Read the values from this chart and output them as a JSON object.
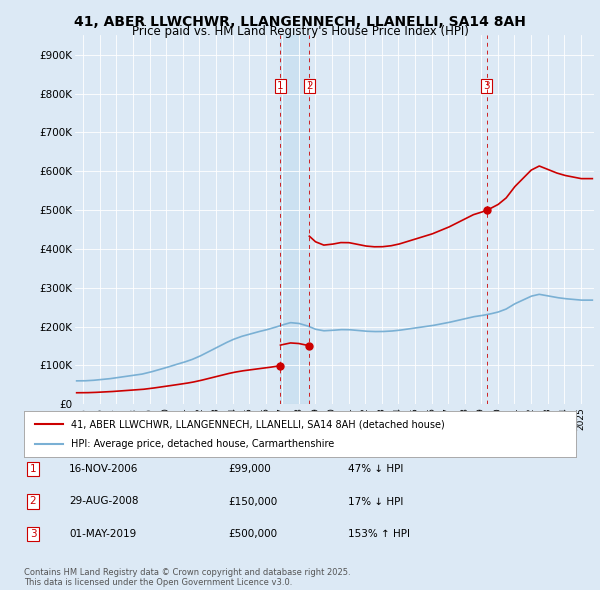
{
  "title": "41, ABER LLWCHWR, LLANGENNECH, LLANELLI, SA14 8AH",
  "subtitle": "Price paid vs. HM Land Registry's House Price Index (HPI)",
  "background_color": "#dce9f5",
  "plot_bg_color": "#dce9f5",
  "legend_label_red": "41, ABER LLWCHWR, LLANGENNECH, LLANELLI, SA14 8AH (detached house)",
  "legend_label_blue": "HPI: Average price, detached house, Carmarthenshire",
  "footnote": "Contains HM Land Registry data © Crown copyright and database right 2025.\nThis data is licensed under the Open Government Licence v3.0.",
  "purchases": [
    {
      "num": 1,
      "date": "16-NOV-2006",
      "price": 99000,
      "pct": "47% ↓ HPI"
    },
    {
      "num": 2,
      "date": "29-AUG-2008",
      "price": 150000,
      "pct": "17% ↓ HPI"
    },
    {
      "num": 3,
      "date": "01-MAY-2019",
      "price": 500000,
      "pct": "153% ↑ HPI"
    }
  ],
  "p1_date": 2006.877,
  "p2_date": 2008.625,
  "p3_date": 2019.329,
  "purchase_marker_prices": [
    99000,
    150000,
    500000
  ],
  "ylim": [
    0,
    950000
  ],
  "yticks": [
    0,
    100000,
    200000,
    300000,
    400000,
    500000,
    600000,
    700000,
    800000,
    900000
  ],
  "ytick_labels": [
    "£0",
    "£100K",
    "£200K",
    "£300K",
    "£400K",
    "£500K",
    "£600K",
    "£700K",
    "£800K",
    "£900K"
  ],
  "xlim_start": 1994.5,
  "xlim_end": 2025.8,
  "red_line_color": "#cc0000",
  "blue_line_color": "#7ab0d4",
  "vline_color": "#cc0000",
  "shade_color": "#c8dff0"
}
